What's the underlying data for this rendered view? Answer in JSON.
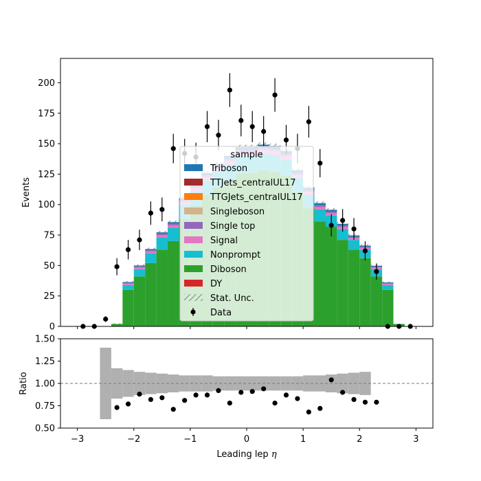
{
  "chart_data": [
    {
      "type": "bar",
      "subtype": "stacked-histogram-with-data-points",
      "ylabel": "Events",
      "xlim": [
        -3.3,
        3.3
      ],
      "ylim": [
        0,
        220
      ],
      "xticks": [
        "-3",
        "-2",
        "-1",
        "0",
        "1",
        "2",
        "3"
      ],
      "yticks": [
        "0",
        "25",
        "50",
        "75",
        "100",
        "125",
        "150",
        "175",
        "200"
      ],
      "bins": {
        "start": -3.0,
        "width": 0.2,
        "count": 30
      },
      "colors": {
        "Diboson": "#2ca02c",
        "Nonprompt": "#17becf",
        "Signal": "#e377c2",
        "Single top": "#9467bd",
        "Triboson": "#1f77b4",
        "stat_unc": "#555555",
        "data": "#000000"
      },
      "series": [
        {
          "name": "Diboson",
          "values": [
            0,
            0,
            0,
            2,
            30,
            41,
            52,
            63,
            70,
            88,
            99,
            108,
            114,
            120,
            126,
            126,
            128,
            127,
            124,
            110,
            97,
            86,
            82,
            71,
            63,
            56,
            41,
            30,
            2,
            0
          ]
        },
        {
          "name": "Nonprompt",
          "values": [
            0,
            0,
            0,
            0,
            4,
            6,
            8,
            10,
            11,
            12,
            12,
            12,
            13,
            13,
            14,
            14,
            14,
            14,
            13,
            12,
            11,
            10,
            9,
            9,
            8,
            7,
            6,
            4,
            0,
            0
          ]
        },
        {
          "name": "Signal",
          "values": [
            0,
            0,
            0,
            0,
            1.2,
            1.4,
            1.6,
            2,
            2,
            2.4,
            2.5,
            2.6,
            2.8,
            3,
            3,
            3,
            3,
            3,
            3,
            2.6,
            2.5,
            2.2,
            2,
            1.8,
            1.6,
            1.5,
            1.3,
            1,
            0,
            0
          ]
        },
        {
          "name": "Single top",
          "values": [
            0,
            0,
            0,
            0,
            0.6,
            0.8,
            0.9,
            1,
            1.2,
            1.2,
            1.3,
            1.4,
            1.5,
            1.5,
            1.6,
            1.6,
            1.6,
            1.6,
            1.5,
            1.4,
            1.3,
            1.2,
            1.1,
            1,
            0.9,
            0.8,
            0.7,
            0.5,
            0,
            0
          ]
        },
        {
          "name": "Triboson",
          "values": [
            0,
            0,
            0,
            0,
            0.6,
            0.8,
            1,
            1.2,
            1.4,
            1.6,
            1.8,
            2,
            2.2,
            2.4,
            2.6,
            2.6,
            2.6,
            2.6,
            2.4,
            2.2,
            2,
            1.8,
            1.6,
            1.4,
            1.2,
            1,
            0.8,
            0.6,
            0,
            0
          ]
        }
      ],
      "data_points": {
        "name": "Data",
        "x": [
          -2.9,
          -2.7,
          -2.5,
          -2.3,
          -2.1,
          -1.9,
          -1.7,
          -1.5,
          -1.3,
          -1.1,
          -0.9,
          -0.7,
          -0.5,
          -0.3,
          -0.1,
          0.1,
          0.3,
          0.5,
          0.7,
          0.9,
          1.1,
          1.3,
          1.5,
          1.7,
          1.9,
          2.1,
          2.3,
          2.5,
          2.7,
          2.9
        ],
        "y": [
          0,
          0,
          6,
          49,
          63,
          71,
          93,
          96,
          146,
          142,
          139,
          164,
          157,
          194,
          169,
          164,
          160,
          190,
          153,
          146,
          168,
          134,
          83,
          87,
          80,
          62,
          45,
          0,
          0,
          0
        ],
        "yerr": [
          0,
          0,
          2.4,
          7,
          8,
          8.4,
          9.6,
          9.8,
          12.1,
          11.9,
          11.8,
          12.8,
          12.5,
          13.9,
          13,
          12.8,
          12.6,
          13.8,
          12.4,
          12.1,
          13,
          11.6,
          9.1,
          9.3,
          8.9,
          7.9,
          6.7,
          0,
          0,
          0
        ]
      },
      "stat_unc": [
        0,
        0,
        0,
        0.5,
        0.8,
        1,
        1.1,
        1.2,
        1.3,
        1.4,
        1.5,
        1.6,
        1.7,
        1.8,
        1.9,
        1.9,
        1.9,
        1.9,
        1.8,
        1.7,
        1.6,
        1.5,
        1.4,
        1.3,
        1.2,
        1.1,
        1,
        0.8,
        0,
        0
      ],
      "legend": {
        "title": "sample",
        "placement": "upper center",
        "entries": [
          "Triboson",
          "TTJets_centralUL17",
          "TTGJets_centralUL17",
          "Singleboson",
          "Single top",
          "Signal",
          "Nonprompt",
          "Diboson",
          "DY",
          "Stat. Unc.",
          "Data"
        ],
        "entry_colors": [
          "#1f77b4",
          "#a52a2a",
          "#ff7f0e",
          "#d2b48c",
          "#9467bd",
          "#e377c2",
          "#17becf",
          "#2ca02c",
          "#d62728",
          "hatch",
          "marker"
        ]
      }
    },
    {
      "type": "scatter",
      "subtype": "ratio-panel",
      "xlabel": "Leading lep $\\eta$",
      "ylabel": "Ratio",
      "xlim": [
        -3.3,
        3.3
      ],
      "ylim": [
        0.5,
        1.5
      ],
      "xticks": [
        "-3",
        "-2",
        "-1",
        "0",
        "1",
        "2",
        "3"
      ],
      "yticks": [
        "0.50",
        "0.75",
        "1.00",
        "1.25",
        "1.50"
      ],
      "reference_line": 1.0,
      "band": {
        "x_edges": [
          -2.6,
          -2.4,
          -2.2,
          -2.0,
          -1.8,
          -1.6,
          -1.4,
          -1.2,
          -1.0,
          -0.8,
          -0.6,
          -0.4,
          -0.2,
          0.0,
          0.2,
          0.4,
          0.6,
          0.8,
          1.0,
          1.2,
          1.4,
          1.6,
          1.8,
          2.0,
          2.2
        ],
        "half_width": [
          0.4,
          0.17,
          0.15,
          0.13,
          0.12,
          0.11,
          0.1,
          0.09,
          0.09,
          0.09,
          0.08,
          0.08,
          0.08,
          0.08,
          0.08,
          0.08,
          0.08,
          0.08,
          0.09,
          0.09,
          0.1,
          0.11,
          0.12,
          0.13
        ]
      },
      "points": {
        "x": [
          -2.3,
          -2.1,
          -1.9,
          -1.7,
          -1.5,
          -1.3,
          -1.1,
          -0.9,
          -0.7,
          -0.5,
          -0.3,
          -0.1,
          0.1,
          0.3,
          0.5,
          0.7,
          0.9,
          1.1,
          1.3,
          1.5,
          1.7,
          1.9,
          2.1,
          2.3
        ],
        "y": [
          0.73,
          0.77,
          0.88,
          0.82,
          0.84,
          0.71,
          0.81,
          0.87,
          0.87,
          0.92,
          0.78,
          0.9,
          0.91,
          0.94,
          0.78,
          0.87,
          0.83,
          0.68,
          0.72,
          1.04,
          0.9,
          0.82,
          0.79,
          0.79
        ]
      }
    }
  ]
}
